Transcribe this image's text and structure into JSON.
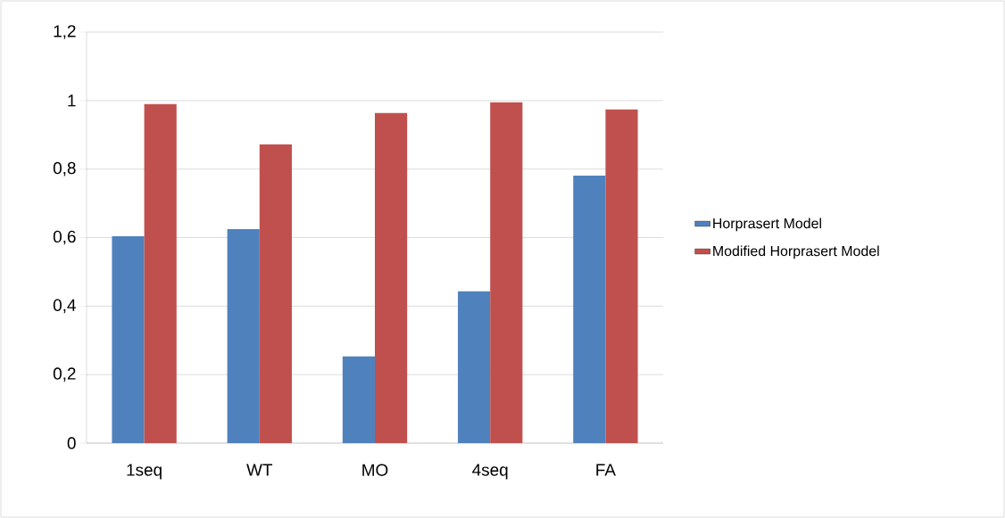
{
  "chart_data": {
    "type": "bar",
    "categories": [
      "1seq",
      "WT",
      "MO",
      "4seq",
      "FA"
    ],
    "series": [
      {
        "name": "Horprasert Model",
        "color": "#4f81bd",
        "values": [
          0.604,
          0.625,
          0.253,
          0.443,
          0.781
        ]
      },
      {
        "name": "Modified Horprasert Model",
        "color": "#c0504d",
        "values": [
          0.99,
          0.872,
          0.964,
          0.995,
          0.974
        ]
      }
    ],
    "ylim": [
      0,
      1.2
    ],
    "yticks": [
      0,
      {
        "value": 0.2,
        "label": "0,2"
      },
      {
        "value": 0.4,
        "label": "0,4"
      },
      {
        "value": 0.6,
        "label": "0,6"
      },
      {
        "value": 0.8,
        "label": "0,8"
      },
      1,
      {
        "value": 1.2,
        "label": "1,2"
      }
    ],
    "grid": "y",
    "legend": "right"
  }
}
